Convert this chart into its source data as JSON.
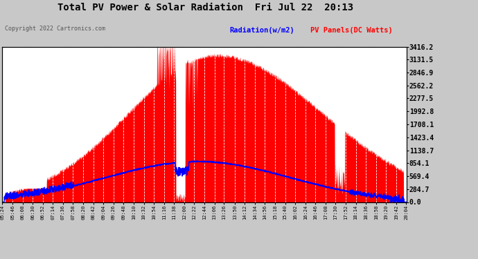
{
  "title": "Total PV Power & Solar Radiation  Fri Jul 22  20:13",
  "copyright_text": "Copyright 2022 Cartronics.com",
  "legend_radiation": "Radiation(w/m2)",
  "legend_pv": "PV Panels(DC Watts)",
  "yticks": [
    0.0,
    284.7,
    569.4,
    854.1,
    1138.7,
    1423.4,
    1708.1,
    1992.8,
    2277.5,
    2562.2,
    2846.9,
    3131.5,
    3416.2
  ],
  "ymax": 3416.2,
  "bg_color": "#c8c8c8",
  "plot_bg_color": "#ffffff",
  "grid_color": "#ffffff",
  "pv_color": "#ff0000",
  "radiation_color": "#0000ff",
  "title_color": "#000000",
  "axis_color": "#000000",
  "tick_color": "#000000",
  "xtick_labels": [
    "05:24",
    "05:46",
    "06:08",
    "06:30",
    "06:52",
    "07:14",
    "07:36",
    "07:58",
    "08:20",
    "08:42",
    "09:04",
    "09:26",
    "09:48",
    "10:10",
    "10:32",
    "10:54",
    "11:16",
    "11:38",
    "12:00",
    "12:22",
    "12:44",
    "13:06",
    "13:26",
    "13:50",
    "14:12",
    "14:34",
    "14:56",
    "15:18",
    "15:40",
    "16:02",
    "16:24",
    "16:46",
    "17:08",
    "17:30",
    "17:52",
    "18:14",
    "18:36",
    "18:58",
    "19:20",
    "19:42",
    "20:04"
  ]
}
